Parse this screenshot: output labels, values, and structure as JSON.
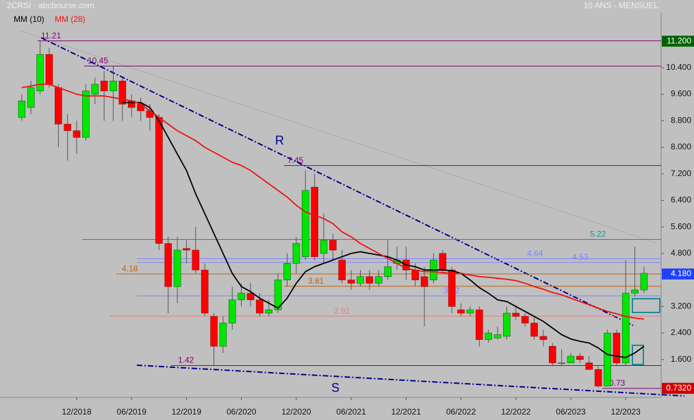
{
  "chart_data": {
    "type": "candlestick",
    "title": "2CRSI - abcbourse.com",
    "subtitle": "10 ANS - MENSUEL",
    "categories": [
      null,
      null,
      null,
      null,
      null,
      null,
      "12/2018",
      null,
      null,
      null,
      null,
      null,
      "06/2019",
      null,
      null,
      null,
      null,
      null,
      "12/2019",
      null,
      null,
      null,
      null,
      null,
      "06/2020",
      null,
      null,
      null,
      null,
      null,
      "12/2020",
      null,
      null,
      null,
      null,
      null,
      "06/2021",
      null,
      null,
      null,
      null,
      null,
      "12/2021",
      null,
      null,
      null,
      null,
      null,
      "06/2022",
      null,
      null,
      null,
      null,
      null,
      "12/2022",
      null,
      null,
      null,
      null,
      null,
      "06/2023",
      null,
      null,
      null,
      null,
      null,
      "12/2023",
      null,
      null
    ],
    "open": [
      8.9,
      9.2,
      9.7,
      10.8,
      9.8,
      8.7,
      8.5,
      8.3,
      9.6,
      10.0,
      9.7,
      10.0,
      9.4,
      9.3,
      9.1,
      8.9,
      5.1,
      3.8,
      4.95,
      4.9,
      4.3,
      2.9,
      2.0,
      2.7,
      3.4,
      3.6,
      3.4,
      3.0,
      3.1,
      4.0,
      4.5,
      4.7,
      6.8,
      4.8,
      5.2,
      4.6,
      4.0,
      3.9,
      4.1,
      3.9,
      4.1,
      4.5,
      4.6,
      4.3,
      4.1,
      4.0,
      4.8,
      4.3,
      3.1,
      3.0,
      3.1,
      2.2,
      2.25,
      2.3,
      3.0,
      2.9,
      2.7,
      2.3,
      2.0,
      1.5,
      1.5,
      1.7,
      1.5,
      1.3,
      0.8,
      2.4,
      1.5,
      3.6,
      3.7
    ],
    "high": [
      9.6,
      10.0,
      11.2,
      11.0,
      9.9,
      9.0,
      8.8,
      9.9,
      10.1,
      10.3,
      10.45,
      10.1,
      9.6,
      9.5,
      9.3,
      9.0,
      5.3,
      5.3,
      5.2,
      5.6,
      4.5,
      3.0,
      2.9,
      3.8,
      3.9,
      3.9,
      3.6,
      3.4,
      4.2,
      4.8,
      5.3,
      7.3,
      7.2,
      6.0,
      5.4,
      4.9,
      4.3,
      4.3,
      4.3,
      4.3,
      5.2,
      5.0,
      5.0,
      4.5,
      4.4,
      4.8,
      4.9,
      4.4,
      3.3,
      3.2,
      3.2,
      2.5,
      2.6,
      3.2,
      3.2,
      3.0,
      2.9,
      2.5,
      2.1,
      1.9,
      1.8,
      1.8,
      1.7,
      1.4,
      2.5,
      2.5,
      4.6,
      5.0,
      4.4
    ],
    "low": [
      8.8,
      9.0,
      9.6,
      9.8,
      8.0,
      7.6,
      7.8,
      8.2,
      9.3,
      8.8,
      8.8,
      8.8,
      8.9,
      8.8,
      8.5,
      4.9,
      3.0,
      3.3,
      4.5,
      4.2,
      2.9,
      1.4,
      1.8,
      2.5,
      3.2,
      3.2,
      2.9,
      2.9,
      3.0,
      3.8,
      4.2,
      4.6,
      4.6,
      4.5,
      4.6,
      3.9,
      3.7,
      3.8,
      3.7,
      3.8,
      4.0,
      4.3,
      4.0,
      3.8,
      2.6,
      3.9,
      4.2,
      3.0,
      2.9,
      2.9,
      2.0,
      2.1,
      2.2,
      2.2,
      2.8,
      2.6,
      2.2,
      2.0,
      1.4,
      1.4,
      1.5,
      1.5,
      1.3,
      0.75,
      0.8,
      1.4,
      1.4,
      3.5,
      3.6
    ],
    "close": [
      9.4,
      9.8,
      10.8,
      9.9,
      8.7,
      8.5,
      8.3,
      9.7,
      9.9,
      9.7,
      10.0,
      9.3,
      9.2,
      9.1,
      8.9,
      5.1,
      3.8,
      4.9,
      4.9,
      4.3,
      3.0,
      2.0,
      2.7,
      3.4,
      3.6,
      3.4,
      3.0,
      3.1,
      4.0,
      4.5,
      5.1,
      6.7,
      4.7,
      5.2,
      4.9,
      4.0,
      3.9,
      4.1,
      3.9,
      4.1,
      4.4,
      4.6,
      4.3,
      4.0,
      3.8,
      4.6,
      4.3,
      3.2,
      3.0,
      3.1,
      2.2,
      2.4,
      2.35,
      3.0,
      2.9,
      2.7,
      2.3,
      2.2,
      1.5,
      1.5,
      1.7,
      1.6,
      1.3,
      0.8,
      2.4,
      1.5,
      3.6,
      3.7,
      4.2
    ],
    "up_color": "#00e600",
    "down_color": "#ff0000",
    "series": [
      {
        "name": "MM (10)",
        "color": "#000000",
        "values": [
          null,
          null,
          null,
          null,
          null,
          null,
          null,
          null,
          null,
          null,
          null,
          9.35,
          9.35,
          9.35,
          9.2,
          8.8,
          8.3,
          7.8,
          7.3,
          6.6,
          6.0,
          5.4,
          4.8,
          4.2,
          3.8,
          3.65,
          3.45,
          3.3,
          3.15,
          3.45,
          3.9,
          4.25,
          4.4,
          4.5,
          4.6,
          4.7,
          4.8,
          4.85,
          4.8,
          4.75,
          4.7,
          4.6,
          4.45,
          4.4,
          4.3,
          4.3,
          4.3,
          4.28,
          4.2,
          4.0,
          3.77,
          3.6,
          3.4,
          3.35,
          3.2,
          3.05,
          2.9,
          2.75,
          2.55,
          2.35,
          2.22,
          2.15,
          2.1,
          1.95,
          1.75,
          1.7,
          1.66,
          1.8,
          2.0
        ]
      },
      {
        "name": "MM (28)",
        "color": "#ee1111",
        "values": [
          9.8,
          9.85,
          9.9,
          9.9,
          9.8,
          9.7,
          9.6,
          9.55,
          9.55,
          9.55,
          9.5,
          9.45,
          9.4,
          9.3,
          9.1,
          8.9,
          8.7,
          8.5,
          8.35,
          8.2,
          8.0,
          7.85,
          7.7,
          7.55,
          7.45,
          7.3,
          7.1,
          6.9,
          6.7,
          6.5,
          6.25,
          6.05,
          5.95,
          5.85,
          5.7,
          5.45,
          5.3,
          5.1,
          4.95,
          4.8,
          4.65,
          4.5,
          4.35,
          4.3,
          4.25,
          4.25,
          4.22,
          4.2,
          4.2,
          4.15,
          4.1,
          4.08,
          4.05,
          4.02,
          3.98,
          3.9,
          3.8,
          3.72,
          3.62,
          3.55,
          3.45,
          3.35,
          3.25,
          3.15,
          3.05,
          2.98,
          2.9,
          2.85,
          2.82
        ]
      }
    ],
    "levels": [
      {
        "value": 11.21,
        "color": "#800080"
      },
      {
        "value": 10.45,
        "color": "#800080"
      },
      {
        "value": 7.45,
        "color": "#800080"
      },
      {
        "value": 5.22,
        "color": "#1a9090"
      },
      {
        "value": 4.64,
        "color": "#8080ff"
      },
      {
        "value": 4.53,
        "color": "#8080ff"
      },
      {
        "value": 4.18,
        "color": "#c06010"
      },
      {
        "value": 3.81,
        "color": "#c06010"
      },
      {
        "value": 3.52,
        "color": "#8080ff"
      },
      {
        "value": 2.91,
        "color": "#e08080"
      },
      {
        "value": 1.42,
        "color": "#800080"
      },
      {
        "value": 0.73,
        "color": "#800080"
      }
    ],
    "annotations": [
      "R",
      "S"
    ],
    "price_markers": [
      {
        "value": 11.2,
        "label": "11.200",
        "color": "#006400"
      },
      {
        "value": 4.18,
        "label": "4.180",
        "color": "#2040ff"
      },
      {
        "value": 0.732,
        "label": "0.7320",
        "color": "#d00000"
      }
    ],
    "ylim": [
      0.5,
      12.07
    ],
    "yticks": [
      {
        "value": 10.4,
        "label": "10.400"
      },
      {
        "value": 9.6,
        "label": "9.600"
      },
      {
        "value": 8.8,
        "label": "8.800"
      },
      {
        "value": 8.0,
        "label": "8.000"
      },
      {
        "value": 7.2,
        "label": "7.200"
      },
      {
        "value": 6.4,
        "label": "6.400"
      },
      {
        "value": 5.6,
        "label": "5.600"
      },
      {
        "value": 4.8,
        "label": "4.800"
      },
      {
        "value": 3.2,
        "label": "3.200"
      },
      {
        "value": 2.4,
        "label": "2.400"
      },
      {
        "value": 1.6,
        "label": "1.600"
      }
    ]
  }
}
